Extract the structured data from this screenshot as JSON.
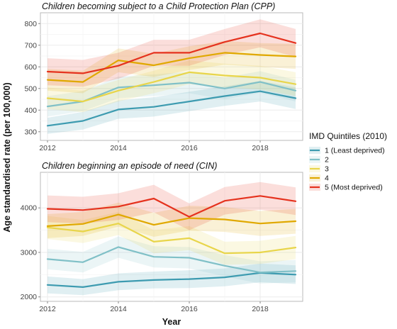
{
  "ylabel": "Age standardised rate (per 100,000)",
  "xlabel": "Year",
  "legend": {
    "title": "IMD Quintiles (2010)",
    "position": "right",
    "items": [
      {
        "label": "1 (Least deprived)",
        "color": "#3d9bb0"
      },
      {
        "label": "2",
        "color": "#80c0c7"
      },
      {
        "label": "3",
        "color": "#e8d54a"
      },
      {
        "label": "4",
        "color": "#e0a800"
      },
      {
        "label": "5 (Most deprived)",
        "color": "#e5321e"
      }
    ]
  },
  "chart_data": [
    {
      "type": "line",
      "title": "Children becoming subject to a Child Protection Plan (CPP)",
      "x": [
        2012,
        2013,
        2014,
        2015,
        2016,
        2017,
        2018,
        2019
      ],
      "xticks": [
        2012,
        2014,
        2016,
        2018
      ],
      "xlim": [
        2011.8,
        2019.2
      ],
      "ylim": [
        260,
        850
      ],
      "yticks": [
        300,
        400,
        500,
        600,
        700,
        800
      ],
      "grid": true,
      "ribbons": true,
      "series": [
        {
          "name": "1 (Least deprived)",
          "color": "#3d9bb0",
          "values": [
            328,
            350,
            403,
            415,
            440,
            465,
            487,
            455
          ],
          "lower": [
            290,
            310,
            360,
            370,
            395,
            420,
            440,
            405
          ],
          "upper": [
            365,
            392,
            445,
            460,
            485,
            510,
            535,
            505
          ]
        },
        {
          "name": "2",
          "color": "#80c0c7",
          "values": [
            417,
            440,
            505,
            515,
            527,
            500,
            530,
            490
          ],
          "lower": [
            370,
            395,
            455,
            465,
            478,
            450,
            480,
            440
          ],
          "upper": [
            465,
            488,
            555,
            565,
            577,
            550,
            580,
            540
          ]
        },
        {
          "name": "3",
          "color": "#e8d54a",
          "values": [
            455,
            440,
            490,
            530,
            575,
            560,
            550,
            520
          ],
          "lower": [
            405,
            390,
            440,
            478,
            520,
            505,
            495,
            465
          ],
          "upper": [
            505,
            490,
            540,
            582,
            630,
            615,
            605,
            575
          ]
        },
        {
          "name": "4",
          "color": "#e0a800",
          "values": [
            540,
            530,
            630,
            607,
            640,
            665,
            655,
            648
          ],
          "lower": [
            490,
            478,
            575,
            553,
            585,
            610,
            600,
            590
          ],
          "upper": [
            590,
            582,
            685,
            661,
            695,
            720,
            710,
            706
          ]
        },
        {
          "name": "5 (Most deprived)",
          "color": "#e5321e",
          "values": [
            578,
            570,
            605,
            665,
            665,
            715,
            755,
            710
          ],
          "lower": [
            515,
            508,
            545,
            605,
            605,
            655,
            690,
            645
          ],
          "upper": [
            640,
            632,
            665,
            725,
            725,
            775,
            820,
            775
          ]
        }
      ]
    },
    {
      "type": "line",
      "title": "Children beginning an episode of need (CIN)",
      "x": [
        2012,
        2013,
        2014,
        2015,
        2016,
        2017,
        2018,
        2019
      ],
      "xticks": [
        2012,
        2014,
        2016,
        2018
      ],
      "xlim": [
        2011.8,
        2019.2
      ],
      "ylim": [
        1900,
        4800
      ],
      "yticks": [
        2000,
        3000,
        4000
      ],
      "grid": true,
      "ribbons": true,
      "series": [
        {
          "name": "1 (Least deprived)",
          "color": "#3d9bb0",
          "values": [
            2270,
            2220,
            2340,
            2380,
            2400,
            2440,
            2540,
            2500
          ],
          "lower": [
            2080,
            2040,
            2150,
            2190,
            2200,
            2240,
            2330,
            2290
          ],
          "upper": [
            2460,
            2400,
            2530,
            2570,
            2600,
            2640,
            2750,
            2710
          ]
        },
        {
          "name": "2",
          "color": "#80c0c7",
          "values": [
            2850,
            2780,
            3120,
            2900,
            2880,
            2700,
            2550,
            2580
          ],
          "lower": [
            2620,
            2550,
            2880,
            2660,
            2640,
            2460,
            2300,
            2330
          ],
          "upper": [
            3080,
            3010,
            3360,
            3140,
            3120,
            2940,
            2800,
            2830
          ]
        },
        {
          "name": "3",
          "color": "#e8d54a",
          "values": [
            3560,
            3470,
            3650,
            3240,
            3320,
            2980,
            3000,
            3110
          ],
          "lower": [
            3300,
            3210,
            3390,
            2980,
            3050,
            2720,
            2740,
            2850
          ],
          "upper": [
            3820,
            3730,
            3910,
            3500,
            3590,
            3240,
            3260,
            3370
          ]
        },
        {
          "name": "4",
          "color": "#e0a800",
          "values": [
            3590,
            3640,
            3850,
            3620,
            3770,
            3740,
            3650,
            3700
          ],
          "lower": [
            3320,
            3370,
            3580,
            3350,
            3490,
            3460,
            3370,
            3420
          ],
          "upper": [
            3860,
            3910,
            4120,
            3890,
            4050,
            4020,
            3930,
            3980
          ]
        },
        {
          "name": "5 (Most deprived)",
          "color": "#e5321e",
          "values": [
            3980,
            3950,
            4030,
            4210,
            3800,
            4160,
            4270,
            4150
          ],
          "lower": [
            3680,
            3650,
            3730,
            3900,
            3500,
            3850,
            3960,
            3840
          ],
          "upper": [
            4280,
            4250,
            4330,
            4520,
            4100,
            4470,
            4580,
            4460
          ]
        }
      ]
    }
  ]
}
